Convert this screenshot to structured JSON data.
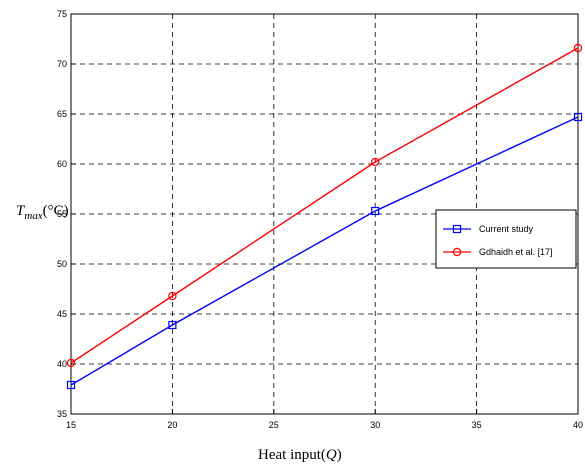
{
  "chart_data": {
    "type": "line",
    "title": "",
    "xlabel": "Heat input(Q)",
    "ylabel": "T_max(°C)",
    "ylabel_parts": {
      "symbol": "T",
      "subscript": "max",
      "unit": "(°C)"
    },
    "xlabel_parts": {
      "text": "Heat input(",
      "symbol": "Q",
      "close": ")"
    },
    "xlim": [
      15,
      40
    ],
    "ylim": [
      35,
      75
    ],
    "x_ticks": [
      15,
      20,
      25,
      30,
      35,
      40
    ],
    "y_ticks": [
      35,
      40,
      45,
      50,
      55,
      60,
      65,
      70,
      75
    ],
    "grid": true,
    "legend_position": "right",
    "series": [
      {
        "name": "Current study",
        "color": "#0000ff",
        "marker": "square",
        "x": [
          15,
          20,
          30,
          40
        ],
        "y": [
          37.9,
          43.9,
          55.3,
          64.7
        ]
      },
      {
        "name": "Gdhaidh et al. [17]",
        "color": "#ff0000",
        "marker": "circle",
        "x": [
          15,
          20,
          30,
          40
        ],
        "y": [
          40.1,
          46.8,
          60.2,
          71.6
        ]
      }
    ]
  }
}
